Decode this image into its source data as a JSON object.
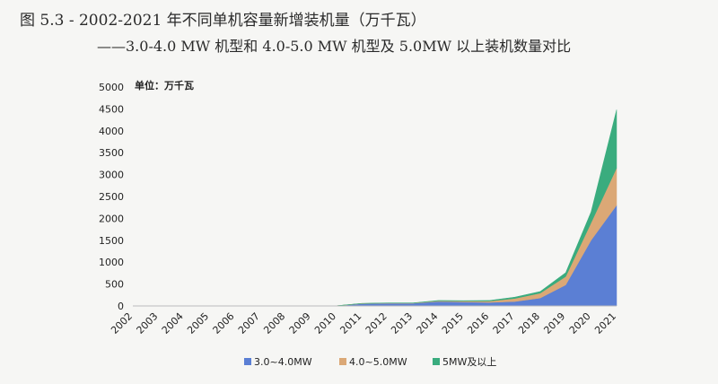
{
  "figure": {
    "title": "图 5.3 - 2002-2021 年不同单机容量新增装机量（万千瓦）",
    "subtitle": "——3.0-4.0 MW 机型和 4.0-5.0 MW 机型及 5.0MW 以上装机数量对比"
  },
  "chart_data": {
    "type": "area",
    "stacked": true,
    "unit_label": "单位：万千瓦",
    "categories": [
      "2002",
      "2003",
      "2004",
      "2005",
      "2006",
      "2007",
      "2008",
      "2009",
      "2010",
      "2011",
      "2012",
      "2013",
      "2014",
      "2015",
      "2016",
      "2017",
      "2018",
      "2019",
      "2020",
      "2021"
    ],
    "series": [
      {
        "name": "3.0~4.0MW",
        "color": "#5b7fd4",
        "values": [
          0,
          0,
          0,
          0,
          0,
          0,
          0,
          0,
          5,
          50,
          60,
          60,
          100,
          90,
          80,
          100,
          180,
          480,
          1500,
          2300
        ]
      },
      {
        "name": "4.0~5.0MW",
        "color": "#dba876",
        "values": [
          0,
          0,
          0,
          0,
          0,
          0,
          0,
          0,
          0,
          5,
          5,
          5,
          15,
          20,
          30,
          70,
          110,
          190,
          400,
          850
        ]
      },
      {
        "name": "5MW及以上",
        "color": "#3aac7e",
        "values": [
          0,
          0,
          0,
          0,
          0,
          0,
          0,
          0,
          0,
          5,
          5,
          5,
          10,
          10,
          15,
          30,
          40,
          90,
          250,
          1330
        ]
      }
    ],
    "yticks": [
      0,
      500,
      1000,
      1500,
      2000,
      2500,
      3000,
      3500,
      4000,
      4500,
      5000
    ],
    "ylim": [
      0,
      5000
    ],
    "grid": false,
    "legend_position": "bottom"
  }
}
